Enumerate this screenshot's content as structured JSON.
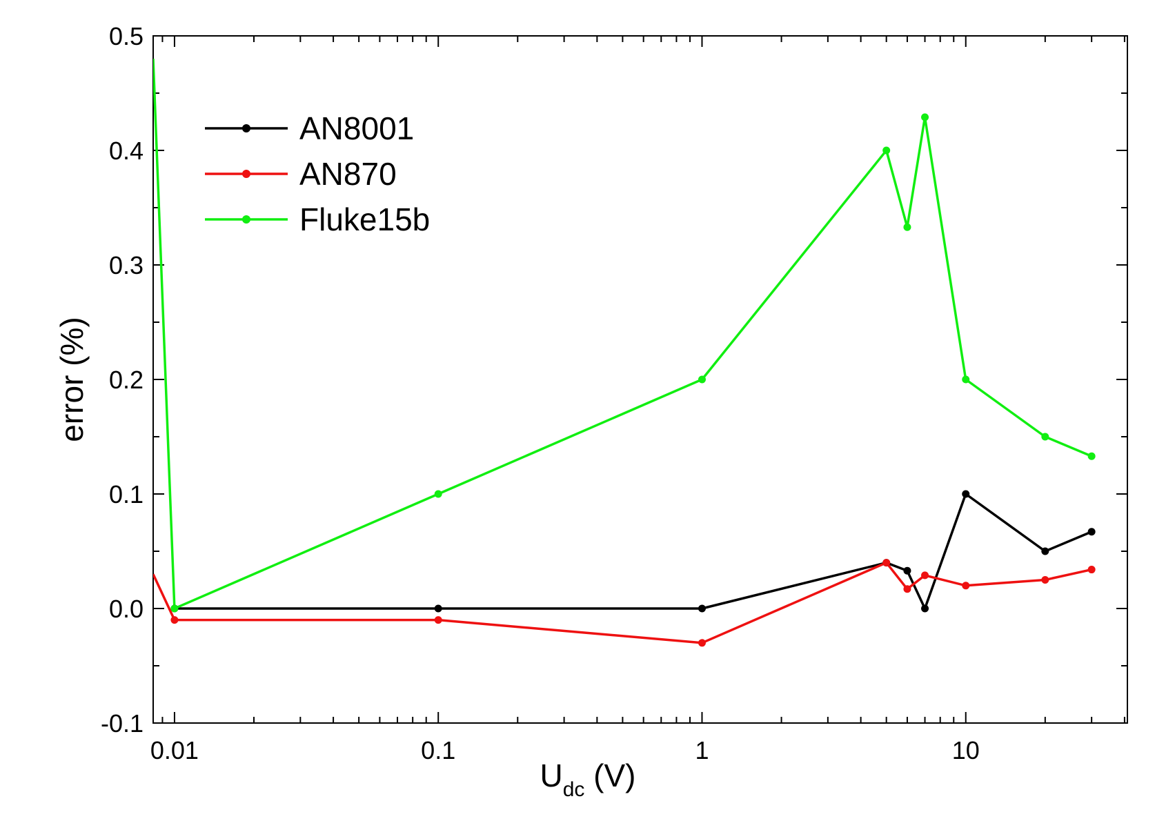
{
  "chart_data": {
    "type": "line",
    "x_scale": "log",
    "xlim": [
      0.0083,
      41
    ],
    "ylim": [
      -0.1,
      0.5
    ],
    "x_ticks": [
      {
        "value": 0.01,
        "label": "0.01"
      },
      {
        "value": 0.1,
        "label": "0.1"
      },
      {
        "value": 1,
        "label": "1"
      },
      {
        "value": 10,
        "label": "10"
      }
    ],
    "y_ticks": [
      {
        "value": -0.1,
        "label": "-0.1"
      },
      {
        "value": 0.0,
        "label": "0.0"
      },
      {
        "value": 0.1,
        "label": "0.1"
      },
      {
        "value": 0.2,
        "label": "0.2"
      },
      {
        "value": 0.3,
        "label": "0.3"
      },
      {
        "value": 0.4,
        "label": "0.4"
      },
      {
        "value": 0.5,
        "label": "0.5"
      }
    ],
    "xlabel": {
      "main": "U",
      "subscript": "dc",
      "unit": " (V)"
    },
    "ylabel": "error (%)",
    "grid": false,
    "legend_position": "top-left",
    "series": [
      {
        "name": "AN8001",
        "color": "#000000",
        "x": [
          0.01,
          0.1,
          1,
          5,
          6,
          7,
          10,
          20,
          30
        ],
        "y": [
          0.0,
          0.0,
          0.0,
          0.04,
          0.033,
          0.0,
          0.1,
          0.05,
          0.067
        ]
      },
      {
        "name": "AN870",
        "color": "#ee1111",
        "x": [
          0.0083,
          0.01,
          0.1,
          1,
          5,
          6,
          7,
          10,
          20,
          30
        ],
        "y": [
          0.03,
          -0.01,
          -0.01,
          -0.03,
          0.04,
          0.017,
          0.029,
          0.02,
          0.025,
          0.034
        ]
      },
      {
        "name": "Fluke15b",
        "color": "#11ee11",
        "x": [
          0.0083,
          0.01,
          0.1,
          1,
          5,
          6,
          7,
          10,
          20,
          30
        ],
        "y": [
          0.48,
          0.0,
          0.1,
          0.2,
          0.4,
          0.333,
          0.429,
          0.2,
          0.15,
          0.133
        ]
      }
    ]
  }
}
